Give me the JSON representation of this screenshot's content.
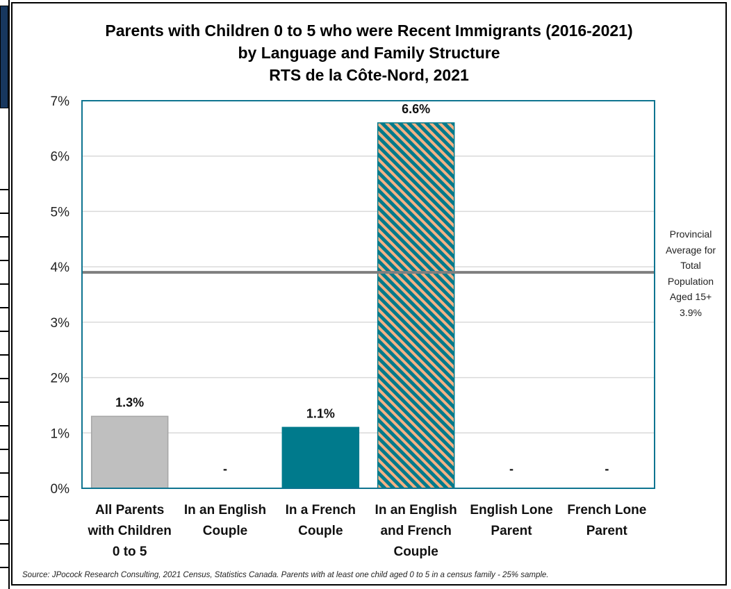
{
  "chart_data": {
    "type": "bar",
    "title_lines": [
      "Parents with Children 0 to 5 who were Recent Immigrants (2016-2021)",
      "by Language and Family Structure",
      "RTS de la Côte-Nord, 2021"
    ],
    "categories": [
      [
        "All Parents",
        "with Children",
        "0 to 5"
      ],
      [
        "In an English",
        "Couple"
      ],
      [
        "In a French",
        "Couple"
      ],
      [
        "In an English",
        "and French",
        "Couple"
      ],
      [
        "English Lone",
        "Parent"
      ],
      [
        "French Lone",
        "Parent"
      ]
    ],
    "values": [
      1.3,
      null,
      1.1,
      6.6,
      null,
      null
    ],
    "data_labels": [
      "1.3%",
      "-",
      "1.1%",
      "6.6%",
      "-",
      "-"
    ],
    "bar_colors": [
      "#bfbfbf",
      null,
      "#007a8c",
      "hatch",
      null,
      null
    ],
    "hatch_colors": {
      "stripe": "#007a8c",
      "background": "#f4b183"
    },
    "ylim": [
      0,
      7
    ],
    "yticks": [
      "0%",
      "1%",
      "2%",
      "3%",
      "4%",
      "5%",
      "6%",
      "7%"
    ],
    "reference_line": {
      "value": 3.9,
      "label_lines": [
        "Provincial",
        "Average for",
        "Total",
        "Population",
        "Aged 15+",
        "3.9%"
      ],
      "color": "#7f7f7f"
    },
    "plot_border_color": "#0e7490",
    "grid": true,
    "legend": "none"
  },
  "source_note": "Source: JPocock Research Consulting, 2021 Census, Statistics Canada. Parents with at least one child aged 0 to 5 in a census family - 25% sample."
}
